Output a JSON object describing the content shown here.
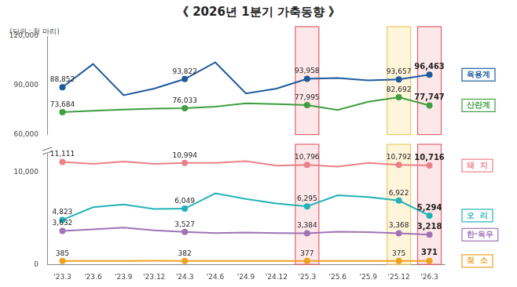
{
  "chart_data": [
    {
      "type": "line",
      "title": "《 2026년 1분기 가축동향 》",
      "subtitle": "(단위 : 천 마리)",
      "categories": [
        "'23.3",
        "'23.6",
        "'23.9",
        "'23.12",
        "'24.3",
        "'24.6",
        "'24.9",
        "'24.12",
        "'25.3",
        "'25.6",
        "'25.9",
        "'25.12",
        "'26.3"
      ],
      "series": [
        {
          "name": "육용계",
          "color": "#1e5a9c",
          "marker": "circle",
          "values": [
            88852,
            103000,
            84000,
            88000,
            93822,
            104000,
            85000,
            88000,
            93958,
            94500,
            93000,
            93657,
            96463
          ],
          "value_labels": [
            "88,852",
            null,
            null,
            null,
            "93,822",
            null,
            null,
            null,
            "93,958",
            null,
            null,
            "93,657",
            "96,463"
          ]
        },
        {
          "name": "산란계",
          "color": "#3f9e3f",
          "marker": "circle",
          "values": [
            73684,
            74500,
            75200,
            75800,
            76033,
            77000,
            79000,
            78500,
            77995,
            75000,
            80000,
            82692,
            77747
          ],
          "value_labels": [
            "73,684",
            null,
            null,
            null,
            "76,033",
            null,
            null,
            null,
            "77,995",
            null,
            null,
            "82,692",
            "77,747"
          ]
        }
      ],
      "ylim": [
        60000,
        120000
      ],
      "yticks": [
        {
          "value": 60000,
          "label": "60,000"
        },
        {
          "value": 90000,
          "label": "90,000"
        },
        {
          "value": 120000,
          "label": "120,000"
        }
      ],
      "grid": false,
      "data_labels": true,
      "tick_labels": "y"
    },
    {
      "type": "line",
      "categories": [
        "'23.3",
        "'23.6",
        "'23.9",
        "'23.12",
        "'24.3",
        "'24.6",
        "'24.9",
        "'24.12",
        "'25.3",
        "'25.6",
        "'25.9",
        "'25.12",
        "'26.3"
      ],
      "series": [
        {
          "name": "돼  지",
          "color": "#ec8088",
          "marker": "circle",
          "values": [
            11111,
            10900,
            11150,
            10900,
            10994,
            11000,
            11200,
            10700,
            10796,
            10600,
            11000,
            10792,
            10716
          ],
          "value_labels": [
            "11,111",
            null,
            null,
            null,
            "10,994",
            null,
            null,
            null,
            "10,796",
            null,
            null,
            "10,792",
            "10,716"
          ]
        },
        {
          "name": "오  리",
          "color": "#22b2b8",
          "marker": "circle",
          "values": [
            4823,
            6200,
            6500,
            6000,
            6049,
            7700,
            7100,
            6600,
            6295,
            7500,
            7300,
            6922,
            5294
          ],
          "value_labels": [
            "4,823",
            null,
            null,
            null,
            "6,049",
            null,
            null,
            null,
            "6,295",
            null,
            null,
            "6,922",
            "5,294"
          ]
        },
        {
          "name": "한·육우",
          "color": "#a072b6",
          "marker": "circle",
          "values": [
            3632,
            3800,
            4000,
            3700,
            3527,
            3400,
            3450,
            3400,
            3384,
            3550,
            3500,
            3368,
            3218
          ],
          "value_labels": [
            "3,632",
            null,
            null,
            null,
            "3,527",
            null,
            null,
            null,
            "3,384",
            null,
            null,
            "3,368",
            "3,218"
          ]
        },
        {
          "name": "젖  소",
          "color": "#f0a020",
          "marker": "circle",
          "values": [
            385,
            378,
            385,
            390,
            382,
            378,
            375,
            378,
            377,
            372,
            375,
            375,
            371
          ],
          "value_labels": [
            "385",
            null,
            null,
            null,
            "382",
            null,
            null,
            null,
            "377",
            null,
            null,
            "375",
            "371"
          ]
        }
      ],
      "ylim": [
        0,
        12000
      ],
      "yticks": [
        0,
        {
          "value": 10000,
          "label": "10,000"
        }
      ],
      "grid": false,
      "data_labels": true
    }
  ]
}
